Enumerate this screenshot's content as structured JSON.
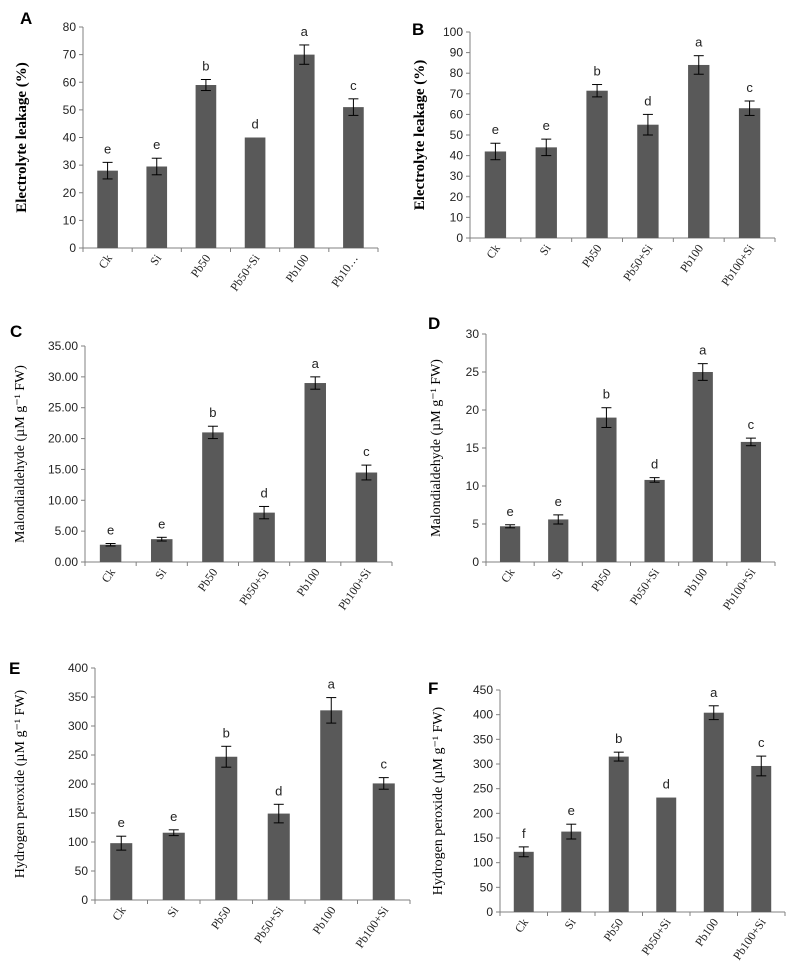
{
  "colors": {
    "bar": "#595959",
    "axis": "#808080",
    "text": "#222222"
  },
  "chart_data": [
    {
      "type": "bar",
      "panel": "A",
      "ylabel": "Electrolyte leakage (%)",
      "categories": [
        "Ck",
        "Si",
        "Pb50",
        "Pb50+Si",
        "Pb100",
        "Pb10…"
      ],
      "values": [
        28,
        29.5,
        59,
        40,
        70,
        51
      ],
      "errors": [
        3,
        3,
        2,
        0,
        3.5,
        3
      ],
      "letters": [
        "e",
        "e",
        "b",
        "d",
        "a",
        "c"
      ],
      "ylim": [
        0,
        80
      ],
      "yticks": [
        "0",
        "10",
        "20",
        "30",
        "40",
        "50",
        "60",
        "70",
        "80"
      ]
    },
    {
      "type": "bar",
      "panel": "B",
      "ylabel": "Electrolyte leakage (%)",
      "categories": [
        "Ck",
        "Si",
        "Pb50",
        "Pb50+Si",
        "Pb100",
        "Pb100+Si"
      ],
      "values": [
        42,
        44,
        71.5,
        55,
        84,
        63
      ],
      "errors": [
        4,
        4,
        3,
        5,
        4.5,
        3.5
      ],
      "letters": [
        "e",
        "e",
        "b",
        "d",
        "a",
        "c"
      ],
      "ylim": [
        0,
        100
      ],
      "yticks": [
        "0",
        "10",
        "20",
        "30",
        "40",
        "50",
        "60",
        "70",
        "80",
        "90",
        "100"
      ]
    },
    {
      "type": "bar",
      "panel": "C",
      "ylabel": "Malondialdehyde (µM g⁻¹ FW)",
      "categories": [
        "Ck",
        "Si",
        "Pb50",
        "Pb50+Si",
        "Pb100",
        "Pb100+Si"
      ],
      "values": [
        2.8,
        3.7,
        21,
        8,
        29,
        14.5
      ],
      "errors": [
        0.2,
        0.3,
        1,
        1,
        1,
        1.2
      ],
      "letters": [
        "e",
        "e",
        "b",
        "d",
        "a",
        "c"
      ],
      "ylim": [
        0,
        35
      ],
      "yticks": [
        "0.00",
        "5.00",
        "10.00",
        "15.00",
        "20.00",
        "25.00",
        "30.00",
        "35.00"
      ]
    },
    {
      "type": "bar",
      "panel": "D",
      "ylabel": "Malondialdehyde (µM g⁻¹ FW)",
      "categories": [
        "Ck",
        "Si",
        "Pb50",
        "Pb50+Si",
        "Pb100",
        "Pb100+Si"
      ],
      "values": [
        4.7,
        5.6,
        19,
        10.8,
        25,
        15.8
      ],
      "errors": [
        0.2,
        0.6,
        1.3,
        0.3,
        1.1,
        0.5
      ],
      "letters": [
        "e",
        "e",
        "b",
        "d",
        "a",
        "c"
      ],
      "ylim": [
        0,
        30
      ],
      "yticks": [
        "0",
        "5",
        "10",
        "15",
        "20",
        "25",
        "30"
      ]
    },
    {
      "type": "bar",
      "panel": "E",
      "ylabel": "Hydrogen peroxide (µM g⁻¹ FW)",
      "categories": [
        "Ck",
        "Si",
        "Pb50",
        "Pb50+Si",
        "Pb100",
        "Pb100+Si"
      ],
      "values": [
        98,
        116,
        247,
        149,
        327,
        201
      ],
      "errors": [
        12,
        5,
        18,
        16,
        22,
        10
      ],
      "letters": [
        "e",
        "e",
        "b",
        "d",
        "a",
        "c"
      ],
      "ylim": [
        0,
        400
      ],
      "yticks": [
        "0",
        "50",
        "100",
        "150",
        "200",
        "250",
        "300",
        "350",
        "400"
      ]
    },
    {
      "type": "bar",
      "panel": "F",
      "ylabel": "Hydrogen peroxide (µM g⁻¹ FW)",
      "categories": [
        "Ck",
        "Si",
        "Pb50",
        "Pb50+Si",
        "Pb100",
        "Pb100+Si"
      ],
      "values": [
        122,
        163,
        315,
        232,
        404,
        296
      ],
      "errors": [
        10,
        15,
        9,
        0,
        14,
        20
      ],
      "letters": [
        "f",
        "e",
        "b",
        "d",
        "a",
        "c"
      ],
      "ylim": [
        0,
        450
      ],
      "yticks": [
        "0",
        "50",
        "100",
        "150",
        "200",
        "250",
        "300",
        "350",
        "400",
        "450"
      ]
    }
  ]
}
